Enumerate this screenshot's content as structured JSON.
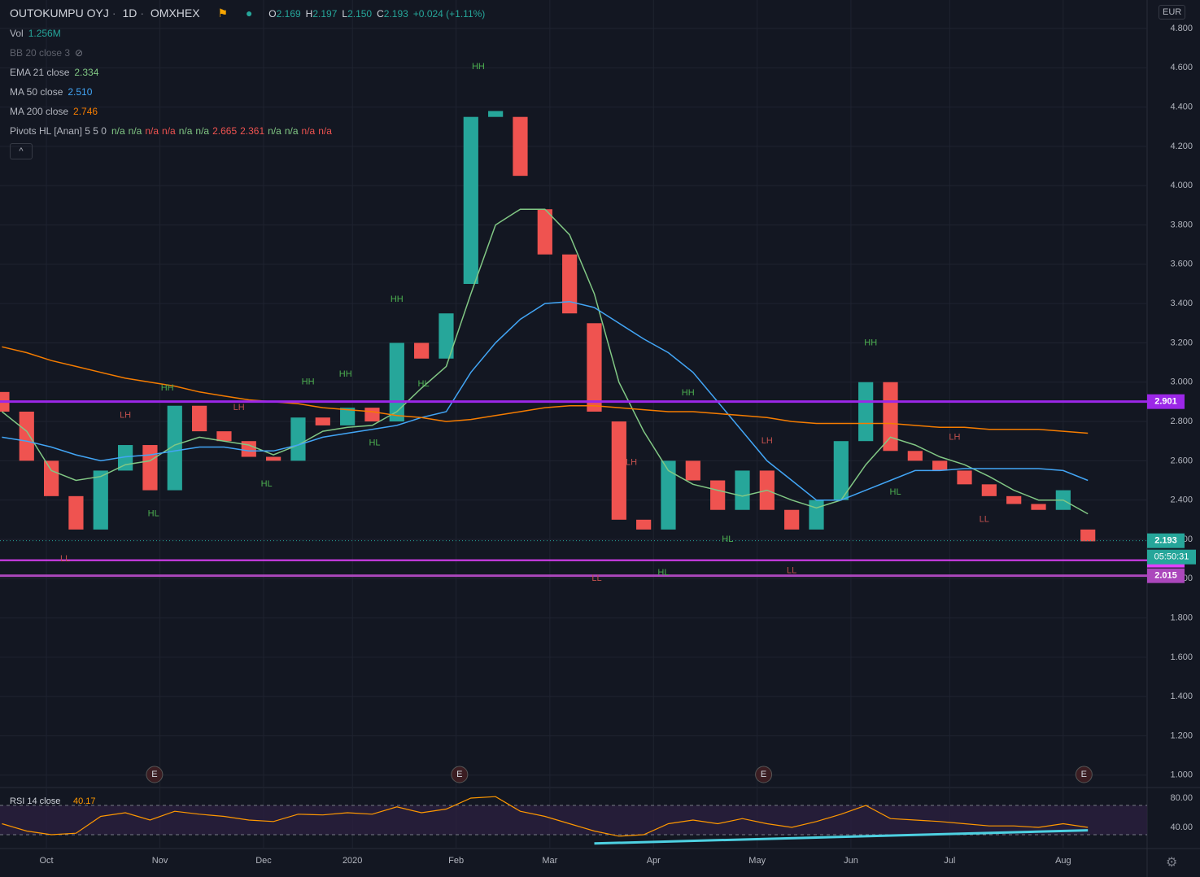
{
  "header": {
    "symbol": "OUTOKUMPU OYJ",
    "interval": "1D",
    "exchange": "OMXHEX",
    "ohlc": [
      {
        "label": "O",
        "value": "2.169"
      },
      {
        "label": "H",
        "value": "2.197"
      },
      {
        "label": "L",
        "value": "2.150"
      },
      {
        "label": "C",
        "value": "2.193"
      }
    ],
    "change": "+0.024 (+1.11%)",
    "currency": "EUR",
    "countdown": "05:50:31"
  },
  "legend": {
    "vol_name": "Vol",
    "vol_value": "1.256M",
    "bb": "BB 20 close 3",
    "pivots": "Pivots HL [Anan] 5 5 0",
    "pivot_values": [
      "n/a",
      "n/a",
      "n/a",
      "n/a",
      "n/a",
      "n/a",
      "2.665",
      "2.361",
      "n/a",
      "n/a",
      "n/a",
      "n/a"
    ]
  },
  "chart_data": [
    {
      "type": "candlestick",
      "xlim": [
        -9.4,
        223
      ],
      "ylim": [
        0.937,
        4.945
      ],
      "yticks": [
        {
          "value": 1.0,
          "label": "1.000"
        },
        {
          "value": 1.2,
          "label": "1.200"
        },
        {
          "value": 1.4,
          "label": "1.400"
        },
        {
          "value": 1.6,
          "label": "1.600"
        },
        {
          "value": 1.8,
          "label": "1.800"
        },
        {
          "value": 2.0,
          "label": "2.000"
        },
        {
          "value": 2.2,
          "label": "2.200"
        },
        {
          "value": 2.4,
          "label": "2.400"
        },
        {
          "value": 2.6,
          "label": "2.600"
        },
        {
          "value": 2.8,
          "label": "2.800"
        },
        {
          "value": 3.0,
          "label": "3.000"
        },
        {
          "value": 3.2,
          "label": "3.200"
        },
        {
          "value": 3.4,
          "label": "3.400"
        },
        {
          "value": 3.6,
          "label": "3.600"
        },
        {
          "value": 3.8,
          "label": "3.800"
        },
        {
          "value": 4.0,
          "label": "4.000"
        },
        {
          "value": 4.2,
          "label": "4.200"
        },
        {
          "value": 4.4,
          "label": "4.400"
        },
        {
          "value": 4.6,
          "label": "4.600"
        },
        {
          "value": 4.8,
          "label": "4.800"
        }
      ],
      "xticks": [
        {
          "value": 0,
          "label": "Oct"
        },
        {
          "value": 23,
          "label": "Nov"
        },
        {
          "value": 44,
          "label": "Dec"
        },
        {
          "value": 62,
          "label": "2020"
        },
        {
          "value": 83,
          "label": "Feb"
        },
        {
          "value": 102,
          "label": "Mar"
        },
        {
          "value": 123,
          "label": "Apr"
        },
        {
          "value": 144,
          "label": "May"
        },
        {
          "value": 163,
          "label": "Jun"
        },
        {
          "value": 183,
          "label": "Jul"
        },
        {
          "value": 206,
          "label": "Aug"
        }
      ],
      "grid": true,
      "up_color": "#26a69a",
      "down_color": "#ef5350",
      "x": [
        -9,
        -4,
        1,
        6,
        11,
        16,
        21,
        26,
        31,
        36,
        41,
        46,
        51,
        56,
        61,
        66,
        71,
        76,
        81,
        86,
        91,
        96,
        101,
        106,
        111,
        116,
        121,
        126,
        131,
        136,
        141,
        146,
        151,
        156,
        161,
        166,
        171,
        176,
        181,
        186,
        191,
        196,
        201,
        206,
        211
      ],
      "open": [
        2.95,
        2.85,
        2.6,
        2.42,
        2.25,
        2.55,
        2.68,
        2.45,
        2.88,
        2.75,
        2.7,
        2.62,
        2.6,
        2.82,
        2.78,
        2.87,
        2.8,
        3.2,
        3.12,
        3.5,
        4.35,
        4.35,
        3.88,
        3.65,
        3.3,
        2.8,
        2.3,
        2.25,
        2.6,
        2.5,
        2.35,
        2.55,
        2.35,
        2.25,
        2.4,
        2.7,
        3.0,
        2.65,
        2.6,
        2.55,
        2.48,
        2.42,
        2.38,
        2.35,
        2.25
      ],
      "close": [
        2.85,
        2.6,
        2.42,
        2.25,
        2.55,
        2.68,
        2.45,
        2.88,
        2.75,
        2.7,
        2.62,
        2.6,
        2.82,
        2.78,
        2.87,
        2.8,
        3.2,
        3.12,
        3.35,
        4.35,
        4.38,
        4.05,
        3.65,
        3.35,
        2.85,
        2.3,
        2.25,
        2.6,
        2.5,
        2.35,
        2.55,
        2.35,
        2.25,
        2.4,
        2.7,
        3.0,
        2.65,
        2.6,
        2.55,
        2.48,
        2.42,
        2.38,
        2.35,
        2.45,
        2.19
      ],
      "series": [
        {
          "name": "EMA 21 close",
          "legend_value": "2.334",
          "color": "#81c784",
          "values": [
            2.85,
            2.75,
            2.55,
            2.5,
            2.52,
            2.58,
            2.6,
            2.68,
            2.72,
            2.7,
            2.68,
            2.63,
            2.68,
            2.75,
            2.77,
            2.78,
            2.85,
            2.97,
            3.08,
            3.45,
            3.8,
            3.88,
            3.88,
            3.75,
            3.45,
            3.0,
            2.75,
            2.55,
            2.48,
            2.45,
            2.42,
            2.45,
            2.4,
            2.36,
            2.4,
            2.58,
            2.72,
            2.68,
            2.62,
            2.58,
            2.52,
            2.45,
            2.4,
            2.4,
            2.33
          ]
        },
        {
          "name": "MA 50 close",
          "legend_value": "2.510",
          "color": "#42a5f5",
          "values": [
            2.72,
            2.7,
            2.67,
            2.63,
            2.6,
            2.62,
            2.63,
            2.65,
            2.67,
            2.67,
            2.65,
            2.65,
            2.68,
            2.72,
            2.74,
            2.76,
            2.78,
            2.82,
            2.85,
            3.05,
            3.2,
            3.32,
            3.4,
            3.41,
            3.38,
            3.3,
            3.22,
            3.15,
            3.05,
            2.9,
            2.75,
            2.6,
            2.5,
            2.4,
            2.4,
            2.45,
            2.5,
            2.55,
            2.55,
            2.56,
            2.56,
            2.56,
            2.56,
            2.55,
            2.5
          ]
        },
        {
          "name": "MA 200 close",
          "legend_value": "2.746",
          "color": "#f57c00",
          "values": [
            3.18,
            3.15,
            3.11,
            3.08,
            3.05,
            3.02,
            3.0,
            2.98,
            2.95,
            2.93,
            2.91,
            2.9,
            2.89,
            2.87,
            2.86,
            2.85,
            2.83,
            2.82,
            2.8,
            2.81,
            2.83,
            2.85,
            2.87,
            2.88,
            2.88,
            2.87,
            2.86,
            2.85,
            2.85,
            2.84,
            2.83,
            2.82,
            2.8,
            2.79,
            2.79,
            2.79,
            2.79,
            2.78,
            2.77,
            2.77,
            2.76,
            2.76,
            2.76,
            2.75,
            2.74
          ]
        }
      ],
      "hlines": [
        {
          "value": 2.901,
          "color": "#9c27e8",
          "width": 3
        },
        {
          "value": 2.094,
          "color": "#e040fb",
          "width": 2
        },
        {
          "value": 2.015,
          "color": "#ab47bc",
          "width": 3
        },
        {
          "value": 2.193,
          "color": "#26a69a",
          "width": 1,
          "dotted": true
        }
      ],
      "pivots": [
        {
          "text": "HH",
          "x": 87.5,
          "y": 4.605,
          "color": "#4caf50"
        },
        {
          "text": "HH",
          "x": 71,
          "y": 3.42,
          "color": "#4caf50"
        },
        {
          "text": "HH",
          "x": 24.5,
          "y": 2.97,
          "color": "#4caf50"
        },
        {
          "text": "HH",
          "x": 53,
          "y": 3.0,
          "color": "#4caf50"
        },
        {
          "text": "HH",
          "x": 60.6,
          "y": 3.04,
          "color": "#4caf50"
        },
        {
          "text": "HH",
          "x": 130,
          "y": 2.945,
          "color": "#4caf50"
        },
        {
          "text": "HH",
          "x": 167,
          "y": 3.2,
          "color": "#4caf50"
        },
        {
          "text": "LH",
          "x": 16,
          "y": 2.83,
          "color": "#c0504d"
        },
        {
          "text": "LH",
          "x": 39,
          "y": 2.87,
          "color": "#c0504d"
        },
        {
          "text": "LH",
          "x": 118.5,
          "y": 2.59,
          "color": "#c0504d"
        },
        {
          "text": "LH",
          "x": 146,
          "y": 2.7,
          "color": "#c0504d"
        },
        {
          "text": "LH",
          "x": 184,
          "y": 2.72,
          "color": "#c0504d"
        },
        {
          "text": "HL",
          "x": 21.7,
          "y": 2.33,
          "color": "#4caf50"
        },
        {
          "text": "HL",
          "x": 44.6,
          "y": 2.48,
          "color": "#4caf50"
        },
        {
          "text": "HL",
          "x": 66.5,
          "y": 2.69,
          "color": "#4caf50"
        },
        {
          "text": "HL",
          "x": 76.4,
          "y": 2.99,
          "color": "#4caf50"
        },
        {
          "text": "HL",
          "x": 138,
          "y": 2.2,
          "color": "#4caf50"
        },
        {
          "text": "HL",
          "x": 172,
          "y": 2.44,
          "color": "#4caf50"
        },
        {
          "text": "HL",
          "x": 125,
          "y": 2.03,
          "color": "#4caf50"
        },
        {
          "text": "LL",
          "x": 3.8,
          "y": 2.1,
          "color": "#c0504d"
        },
        {
          "text": "LL",
          "x": 111.5,
          "y": 2.0,
          "color": "#c0504d"
        },
        {
          "text": "LL",
          "x": 151,
          "y": 2.04,
          "color": "#c0504d"
        },
        {
          "text": "LL",
          "x": 190,
          "y": 2.3,
          "color": "#c0504d"
        }
      ],
      "earnings": [
        {
          "x": 21.9,
          "label": "E"
        },
        {
          "x": 83.7,
          "label": "E"
        },
        {
          "x": 145.3,
          "label": "E"
        },
        {
          "x": 210.2,
          "label": "E"
        }
      ]
    },
    {
      "type": "line",
      "title": "RSI 14 close",
      "legend_value": "40.17",
      "color": "#ff9800",
      "ylim": [
        11.1,
        92.2
      ],
      "yticks": [
        {
          "value": 80,
          "label": "80.00"
        },
        {
          "value": 40,
          "label": "40.00"
        }
      ],
      "levels": [
        70,
        30
      ],
      "x": [
        -9,
        -4,
        1,
        6,
        11,
        16,
        21,
        26,
        31,
        36,
        41,
        46,
        51,
        56,
        61,
        66,
        71,
        76,
        81,
        86,
        91,
        96,
        101,
        106,
        111,
        116,
        121,
        126,
        131,
        136,
        141,
        146,
        151,
        156,
        161,
        166,
        171,
        176,
        181,
        186,
        191,
        196,
        201,
        206,
        211
      ],
      "values": [
        45,
        35,
        30,
        32,
        55,
        60,
        50,
        62,
        58,
        55,
        50,
        48,
        58,
        57,
        60,
        58,
        68,
        60,
        65,
        80,
        82,
        62,
        55,
        45,
        35,
        28,
        30,
        45,
        50,
        45,
        52,
        45,
        40,
        48,
        58,
        70,
        52,
        50,
        48,
        45,
        42,
        42,
        40,
        45,
        40
      ],
      "trendline": {
        "x": [
          111,
          211
        ],
        "values": [
          18,
          36
        ],
        "color": "#4dd0e1"
      }
    }
  ]
}
